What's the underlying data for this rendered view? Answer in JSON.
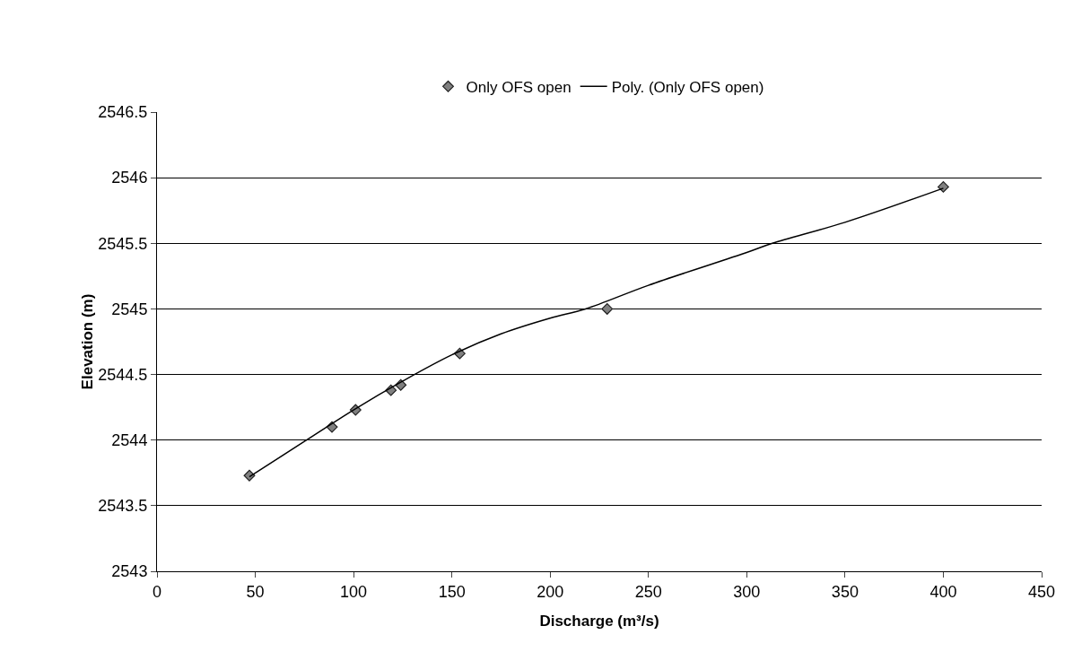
{
  "chart_data": {
    "type": "scatter",
    "xlabel": "Discharge (m³/s)",
    "ylabel": "Elevation (m)",
    "xlim": [
      0,
      450
    ],
    "xticks": [
      0,
      50,
      100,
      150,
      200,
      250,
      300,
      350,
      400,
      450
    ],
    "ylim": [
      2543,
      2546.5
    ],
    "yticks": [
      2543,
      2543.5,
      2544,
      2544.5,
      2545,
      2545.5,
      2546,
      2546.5
    ],
    "grid": "y",
    "legend": "top",
    "marker": "diamond",
    "series": [
      {
        "name": "Only OFS open",
        "color": "#808080",
        "x": [
          47,
          89,
          101,
          119,
          124,
          154,
          229,
          400
        ],
        "values": [
          2543.73,
          2544.1,
          2544.23,
          2544.38,
          2544.42,
          2544.66,
          2545.0,
          2545.93
        ]
      },
      {
        "name": "Poly. (Only OFS open)",
        "type": "line",
        "color": "#000000",
        "marker": "none",
        "line_style": "solid",
        "x": [
          47,
          75,
          100,
          125,
          150,
          175,
          200,
          218,
          250,
          300,
          313,
          350,
          400
        ],
        "values": [
          2543.72,
          2543.99,
          2544.23,
          2544.45,
          2544.65,
          2544.81,
          2544.93,
          2545.0,
          2545.18,
          2545.43,
          2545.5,
          2545.66,
          2545.92
        ]
      }
    ]
  }
}
